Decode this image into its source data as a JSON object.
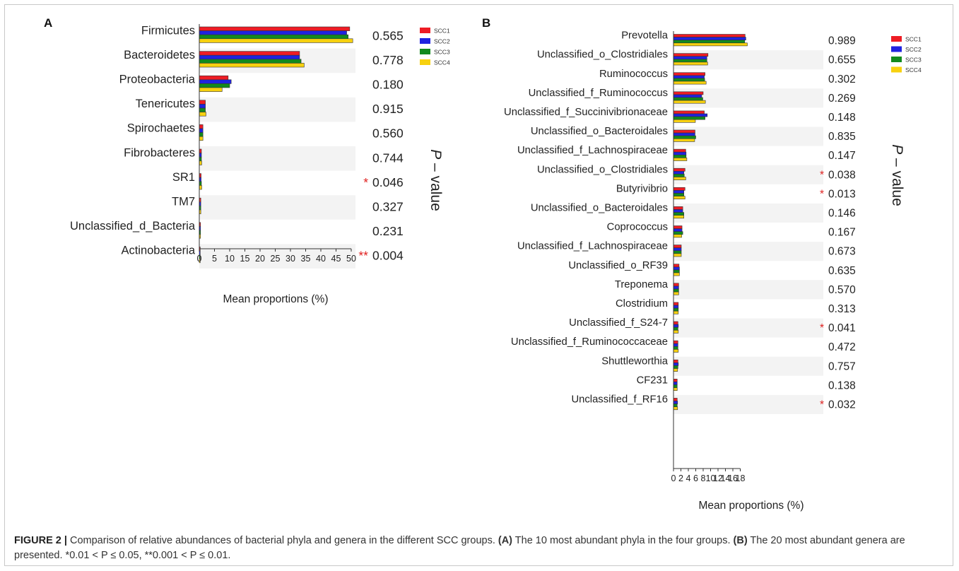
{
  "caption": {
    "label": "FIGURE 2 |",
    "part1": " Comparison of relative abundances of bacterial phyla and genera in the different SCC groups. ",
    "refA": "(A)",
    "part2": " The 10 most abundant phyla in the four groups. ",
    "refB": "(B)",
    "part3": " The 20 most abundant genera are presented. *0.01 < P ≤ 0.05, **0.001 < P ≤ 0.01."
  },
  "colors": {
    "SCC1": "#ee1c24",
    "SCC2": "#1f22e0",
    "SCC3": "#128a1e",
    "SCC4": "#f7d10f"
  },
  "chart_data": [
    {
      "type": "bar",
      "orientation": "horizontal",
      "panel": "A",
      "xlabel": "Mean proportions (%)",
      "side_label": "P – value",
      "xlim": [
        0,
        50
      ],
      "xticks": [
        0,
        5,
        10,
        15,
        20,
        25,
        30,
        35,
        40,
        45,
        50
      ],
      "legend": "top-right",
      "categories": [
        "Firmicutes",
        "Bacteroidetes",
        "Proteobacteria",
        "Tenericutes",
        "Spirochaetes",
        "Fibrobacteres",
        "SR1",
        "TM7",
        "Unclassified_d_Bacteria",
        "Actinobacteria"
      ],
      "series": [
        {
          "name": "SCC1",
          "values": [
            49.5,
            33.0,
            9.5,
            2.0,
            1.2,
            0.7,
            0.6,
            0.5,
            0.4,
            0.3
          ]
        },
        {
          "name": "SCC2",
          "values": [
            48.5,
            33.0,
            10.5,
            2.0,
            1.2,
            0.7,
            0.6,
            0.5,
            0.4,
            0.3
          ]
        },
        {
          "name": "SCC3",
          "values": [
            49.0,
            33.5,
            10.0,
            2.0,
            1.2,
            0.7,
            0.7,
            0.5,
            0.4,
            0.3
          ]
        },
        {
          "name": "SCC4",
          "values": [
            50.5,
            34.5,
            7.5,
            2.2,
            1.2,
            0.8,
            0.8,
            0.5,
            0.4,
            0.3
          ]
        }
      ],
      "p_values": [
        "0.565",
        "0.778",
        "0.180",
        "0.915",
        "0.560",
        "0.744",
        "0.046",
        "0.327",
        "0.231",
        "0.004"
      ],
      "significance": [
        "",
        "",
        "",
        "",
        "",
        "",
        "*",
        "",
        "",
        "**"
      ]
    },
    {
      "type": "bar",
      "orientation": "horizontal",
      "panel": "B",
      "xlabel": "Mean proportions (%)",
      "side_label": "P – value",
      "xlim": [
        0,
        20
      ],
      "xticks": [
        0,
        2,
        4,
        6,
        8,
        10,
        12,
        14,
        16,
        18
      ],
      "legend": "top-right",
      "categories": [
        "Prevotella",
        "Unclassified_o_Clostridiales",
        "Ruminococcus",
        "Unclassified_f_Ruminococcus",
        "Unclassified_f_Succinivibrionaceae",
        "Unclassified_o_Bacteroidales",
        "Unclassified_f_Lachnospiraceae",
        "Unclassified_o_Clostridiales",
        "Butyrivibrio",
        "Unclassified_o_Bacteroidales",
        "Coprococcus",
        "Unclassified_f_Lachnospiraceae",
        "Unclassified_o_RF39",
        "Treponema",
        "Clostridium",
        "Unclassified_f_S24-7",
        "Unclassified_f_Ruminococcaceae",
        "Shuttleworthia",
        "CF231",
        "Unclassified_f_RF16"
      ],
      "series": [
        {
          "name": "SCC1",
          "values": [
            19.3,
            9.3,
            8.5,
            8.0,
            8.3,
            5.8,
            3.3,
            3.1,
            3.1,
            2.5,
            2.3,
            2.1,
            1.5,
            1.4,
            1.3,
            1.2,
            1.2,
            1.2,
            1.0,
            1.0
          ]
        },
        {
          "name": "SCC2",
          "values": [
            19.5,
            9.0,
            8.3,
            7.6,
            9.1,
            5.8,
            3.4,
            2.8,
            2.8,
            2.5,
            2.3,
            2.1,
            1.6,
            1.4,
            1.3,
            1.3,
            1.2,
            1.3,
            1.0,
            1.1
          ]
        },
        {
          "name": "SCC3",
          "values": [
            19.2,
            9.0,
            8.4,
            7.9,
            8.5,
            6.0,
            3.4,
            2.9,
            2.8,
            2.8,
            2.5,
            2.1,
            1.6,
            1.4,
            1.3,
            1.2,
            1.2,
            1.2,
            1.0,
            1.0
          ]
        },
        {
          "name": "SCC4",
          "values": [
            19.9,
            9.2,
            8.8,
            8.6,
            5.9,
            5.7,
            3.6,
            3.3,
            3.1,
            2.8,
            2.2,
            2.1,
            1.6,
            1.4,
            1.3,
            1.3,
            1.3,
            1.1,
            1.0,
            1.1
          ]
        }
      ],
      "p_values": [
        "0.989",
        "0.655",
        "0.302",
        "0.269",
        "0.148",
        "0.835",
        "0.147",
        "0.038",
        "0.013",
        "0.146",
        "0.167",
        "0.673",
        "0.635",
        "0.570",
        "0.313",
        "0.041",
        "0.472",
        "0.757",
        "0.138",
        "0.032"
      ],
      "significance": [
        "",
        "",
        "",
        "",
        "",
        "",
        "",
        "*",
        "*",
        "",
        "",
        "",
        "",
        "",
        "",
        "*",
        "",
        "",
        "",
        "*"
      ]
    }
  ]
}
